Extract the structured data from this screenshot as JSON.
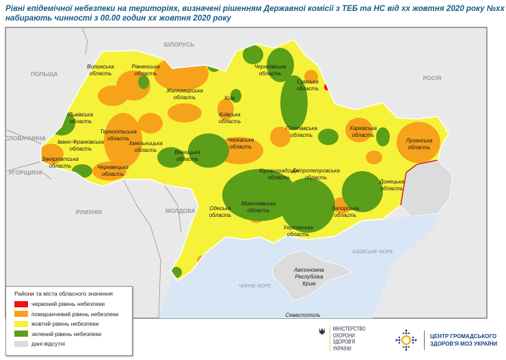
{
  "title": {
    "line1": "Рівні епідемічної небезпеки на територіях, визначені рішенням Державної комісії з ТЕБ та НС від хх жовтня 2020 року №хх",
    "line2": "набирають чинності з 00.00 годин хх жовтня 2020 року"
  },
  "map": {
    "countries": {
      "belarus": "БІЛОРУСЬ",
      "poland": "ПОЛЬЩА",
      "russia": "РОСІЯ",
      "slovakia": "СЛОВАЧЧИНА",
      "hungary": "УГОРЩИНА",
      "romania": "РУМУНІЯ",
      "moldova": "МОЛДОВА"
    },
    "seas": {
      "black": "ЧОРНЕ МОРЕ",
      "azov": "АЗОВСЬКЕ МОРЕ"
    },
    "regions": {
      "volyn": [
        "Волинська",
        "область"
      ],
      "rivne": [
        "Рівненська",
        "область"
      ],
      "zhytomyr": [
        "Житомирська",
        "область"
      ],
      "kyiv_city": "Київ",
      "kyiv": [
        "Київська",
        "область"
      ],
      "chernihiv": [
        "Чернігівська",
        "область"
      ],
      "sumy": [
        "Сумська",
        "область"
      ],
      "lviv": [
        "Львівська",
        "область"
      ],
      "ternopil": [
        "Тернопільська",
        "область"
      ],
      "ivano": [
        "Івано-Франківська",
        "область"
      ],
      "khmelnytskyi": [
        "Хмельницька",
        "область"
      ],
      "zakarpattia": [
        "Закарпатська",
        "область"
      ],
      "chernivtsi": [
        "Чернівецька",
        "область"
      ],
      "vinnytsia": [
        "Вінницька",
        "область"
      ],
      "cherkasy": [
        "Черкаська",
        "область"
      ],
      "poltava": [
        "Полтавська",
        "область"
      ],
      "kharkiv": [
        "Харківська",
        "область"
      ],
      "luhansk": [
        "Луганська",
        "область"
      ],
      "kirovohrad": [
        "Кіровоградська",
        "область"
      ],
      "dnipro": [
        "Дніпропетровська",
        "область"
      ],
      "donetsk": [
        "Донецька",
        "область"
      ],
      "odesa": [
        "Одеська",
        "область"
      ],
      "mykolaiv": [
        "Миколаївська",
        "область"
      ],
      "zaporizhzhia": [
        "Запорізька",
        "область"
      ],
      "kherson": [
        "Херсонська",
        "область"
      ],
      "crimea": [
        "Автономна",
        "Республіка",
        "Крим"
      ],
      "sevastopol": "Севастополь"
    }
  },
  "legend": {
    "heading": "Райони та міста обласного значення",
    "items": [
      {
        "label": "червоний рівень небезпеки",
        "color": "#ee1111"
      },
      {
        "label": "помаранчевий рівень небезпеки",
        "color": "#f7a21b"
      },
      {
        "label": "жовтий рівень небезпеки",
        "color": "#f6f23a"
      },
      {
        "label": "зелений рівень небезпеки",
        "color": "#5a9e1a"
      },
      {
        "label": "дані відсутні",
        "color": "#dddddd"
      }
    ]
  },
  "logos": {
    "ministry": [
      "МІНІСТЕРСТВО",
      "ОХОРОНИ",
      "ЗДОРОВ'Я",
      "УКРАЇНИ"
    ],
    "center": [
      "ЦЕНТР ГРОМАДСЬКОГО",
      "ЗДОРОВ'Я МОЗ УКРАЇНИ"
    ]
  }
}
